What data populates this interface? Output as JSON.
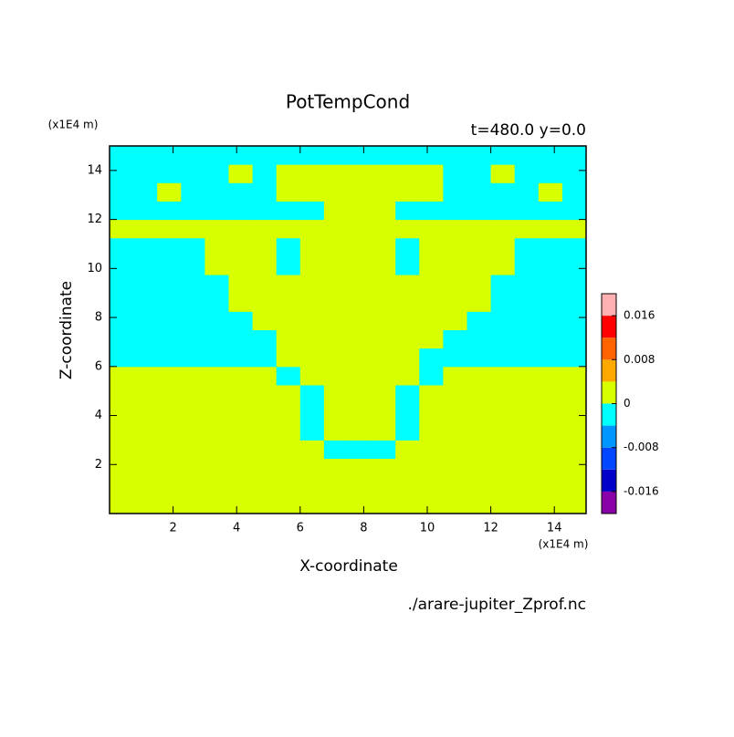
{
  "chart_data": {
    "type": "contour",
    "title": "PotTempCond",
    "subtitle": "t=480.0 y=0.0",
    "x_label": "X-coordinate",
    "y_label": "Z-coordinate",
    "x_units": "(x1E4 m)",
    "y_units": "(x1E4 m)",
    "file": "./arare-jupiter_Zprof.nc",
    "xlim": [
      0,
      15
    ],
    "ylim": [
      0,
      15
    ],
    "xticks": [
      2,
      4,
      6,
      8,
      10,
      12,
      14
    ],
    "yticks": [
      2,
      4,
      6,
      8,
      10,
      12,
      14
    ],
    "x": [
      0.375,
      1.125,
      1.875,
      2.625,
      3.375,
      4.125,
      4.875,
      5.625,
      6.375,
      7.125,
      7.875,
      8.625,
      9.375,
      10.125,
      10.875,
      11.625,
      12.375,
      13.125,
      13.875,
      14.625
    ],
    "y": [
      0.375,
      1.125,
      1.875,
      2.625,
      3.375,
      4.125,
      4.875,
      5.625,
      6.375,
      7.125,
      7.875,
      8.625,
      9.375,
      10.125,
      10.875,
      11.625,
      12.375,
      13.125,
      13.875,
      14.625
    ],
    "z": [
      [
        0.002,
        0.002,
        0.002,
        0.002,
        0.002,
        0.002,
        0.002,
        0.002,
        0.002,
        0.002,
        0.002,
        0.002,
        0.002,
        0.002,
        0.002,
        0.002,
        0.002,
        0.002,
        0.002,
        0.002
      ],
      [
        0.002,
        0.002,
        0.002,
        0.002,
        0.002,
        0.002,
        0.002,
        0.002,
        0.002,
        0.002,
        0.002,
        0.002,
        0.002,
        0.002,
        0.002,
        0.002,
        0.002,
        0.002,
        0.002,
        0.002
      ],
      [
        0.002,
        0.002,
        0.002,
        0.002,
        0.002,
        0.002,
        0.002,
        0.002,
        0.002,
        0.002,
        0.002,
        0.002,
        0.002,
        0.002,
        0.002,
        0.002,
        0.002,
        0.002,
        0.002,
        0.002
      ],
      [
        0.002,
        0.002,
        0.002,
        0.002,
        0.002,
        0.002,
        0.002,
        0.002,
        0.002,
        -0.002,
        -0.002,
        -0.002,
        0.002,
        0.002,
        0.002,
        0.002,
        0.002,
        0.002,
        0.002,
        0.002
      ],
      [
        0.002,
        0.002,
        0.002,
        0.002,
        0.002,
        0.002,
        0.002,
        0.002,
        -0.002,
        0.002,
        0.002,
        0.002,
        -0.002,
        0.002,
        0.002,
        0.002,
        0.002,
        0.002,
        0.002,
        0.002
      ],
      [
        0.002,
        0.002,
        0.002,
        0.002,
        0.002,
        0.002,
        0.002,
        0.002,
        -0.002,
        0.002,
        0.002,
        0.002,
        -0.002,
        0.002,
        0.002,
        0.002,
        0.002,
        0.002,
        0.002,
        0.002
      ],
      [
        0.002,
        0.002,
        0.002,
        0.002,
        0.002,
        0.002,
        0.002,
        0.002,
        -0.002,
        0.002,
        0.002,
        0.002,
        -0.002,
        0.002,
        0.002,
        0.002,
        0.002,
        0.002,
        0.002,
        0.002
      ],
      [
        0.002,
        0.002,
        0.002,
        0.002,
        0.002,
        0.002,
        0.002,
        -0.002,
        0.002,
        0.002,
        0.002,
        0.002,
        0.002,
        -0.002,
        0.002,
        0.002,
        0.002,
        0.002,
        0.002,
        0.002
      ],
      [
        -0.002,
        -0.002,
        -0.002,
        -0.002,
        -0.002,
        -0.002,
        -0.002,
        0.002,
        0.002,
        0.002,
        0.002,
        0.002,
        0.002,
        -0.002,
        -0.002,
        -0.002,
        -0.002,
        -0.002,
        -0.002,
        -0.002
      ],
      [
        -0.002,
        -0.002,
        -0.002,
        -0.002,
        -0.002,
        -0.002,
        -0.002,
        0.002,
        0.002,
        0.002,
        0.002,
        0.002,
        0.002,
        0.002,
        -0.002,
        -0.002,
        -0.002,
        -0.002,
        -0.002,
        -0.002
      ],
      [
        -0.002,
        -0.002,
        -0.002,
        -0.002,
        -0.002,
        -0.002,
        0.002,
        0.002,
        0.002,
        0.002,
        0.002,
        0.002,
        0.002,
        0.002,
        0.002,
        -0.002,
        -0.002,
        -0.002,
        -0.002,
        -0.002
      ],
      [
        -0.002,
        -0.002,
        -0.002,
        -0.002,
        -0.002,
        0.002,
        0.002,
        0.002,
        0.002,
        0.002,
        0.002,
        0.002,
        0.002,
        0.002,
        0.002,
        0.002,
        -0.002,
        -0.002,
        -0.002,
        -0.002
      ],
      [
        -0.002,
        -0.002,
        -0.002,
        -0.002,
        -0.002,
        0.002,
        0.002,
        0.002,
        0.002,
        0.002,
        0.002,
        0.002,
        0.002,
        0.002,
        0.002,
        0.002,
        -0.002,
        -0.002,
        -0.002,
        -0.002
      ],
      [
        -0.002,
        -0.002,
        -0.002,
        -0.002,
        0.002,
        0.002,
        0.002,
        -0.002,
        0.002,
        0.002,
        0.002,
        0.002,
        -0.002,
        0.002,
        0.002,
        0.002,
        0.002,
        -0.002,
        -0.002,
        -0.002
      ],
      [
        -0.002,
        -0.002,
        -0.002,
        -0.002,
        0.002,
        0.002,
        0.002,
        -0.002,
        0.002,
        0.002,
        0.002,
        0.002,
        -0.002,
        0.002,
        0.002,
        0.002,
        0.002,
        -0.002,
        -0.002,
        -0.002
      ],
      [
        0.002,
        0.002,
        0.002,
        0.002,
        0.002,
        0.002,
        0.002,
        0.002,
        0.002,
        0.002,
        0.002,
        0.002,
        0.002,
        0.002,
        0.002,
        0.002,
        0.002,
        0.002,
        0.002,
        0.002
      ],
      [
        -0.002,
        -0.002,
        -0.002,
        -0.002,
        -0.002,
        -0.002,
        -0.002,
        -0.002,
        -0.002,
        0.002,
        0.002,
        0.002,
        -0.002,
        -0.002,
        -0.002,
        -0.002,
        -0.002,
        -0.002,
        -0.002,
        -0.002
      ],
      [
        -0.002,
        -0.002,
        0.002,
        -0.002,
        -0.002,
        -0.002,
        -0.002,
        0.002,
        0.002,
        0.002,
        0.002,
        0.002,
        0.002,
        0.002,
        -0.002,
        -0.002,
        -0.002,
        -0.002,
        0.002,
        -0.002
      ],
      [
        -0.002,
        -0.002,
        -0.002,
        -0.002,
        -0.002,
        0.002,
        -0.002,
        0.002,
        0.002,
        0.002,
        0.002,
        0.002,
        0.002,
        0.002,
        -0.002,
        -0.002,
        0.002,
        -0.002,
        -0.002,
        -0.002
      ],
      [
        -0.002,
        -0.002,
        -0.002,
        -0.002,
        -0.002,
        -0.002,
        -0.002,
        -0.002,
        -0.002,
        -0.002,
        -0.002,
        -0.002,
        -0.002,
        -0.002,
        -0.002,
        -0.002,
        -0.002,
        -0.002,
        -0.002,
        -0.002
      ]
    ],
    "levels": [
      -0.02,
      -0.016,
      -0.012,
      -0.008,
      -0.004,
      0,
      0.004,
      0.008,
      0.012,
      0.016,
      0.02
    ],
    "colors": [
      "#8a00a8",
      "#0000c8",
      "#0046ff",
      "#0096ff",
      "#00ffff",
      "#d8ff00",
      "#ffa800",
      "#ff6400",
      "#ff0000",
      "#ffb0b0"
    ],
    "colorbar_ticks": [
      -0.016,
      -0.008,
      0,
      0.008,
      0.016
    ]
  }
}
